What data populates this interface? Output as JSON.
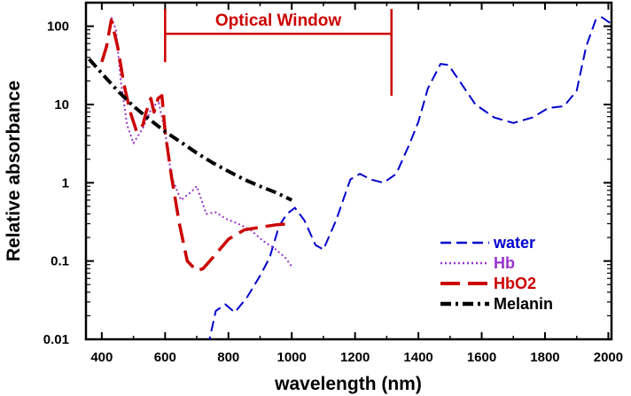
{
  "chart_data": {
    "type": "line",
    "xlabel": "wavelength (nm)",
    "ylabel": "Relative absorbance",
    "xlim": [
      350,
      2010
    ],
    "ylim": [
      0.01,
      200
    ],
    "y_scale": "log",
    "x_ticks": [
      400,
      600,
      800,
      1000,
      1200,
      1400,
      1600,
      1800,
      2000
    ],
    "y_ticks": [
      0.01,
      0.1,
      1,
      10,
      100
    ],
    "y_tick_labels": [
      "0.01",
      "0.1",
      "1",
      "10",
      "100"
    ],
    "grid": false,
    "legend_position": "bottom-right",
    "annotation": {
      "text": "Optical Window",
      "x_start": 600,
      "x_end": 1315,
      "y_level": 80,
      "color": "#cc0000"
    },
    "series": [
      {
        "name": "water",
        "color": "#0000cc",
        "dash": "dashed",
        "points": [
          [
            735,
            0.008
          ],
          [
            760,
            0.023
          ],
          [
            790,
            0.028
          ],
          [
            820,
            0.022
          ],
          [
            860,
            0.035
          ],
          [
            900,
            0.065
          ],
          [
            930,
            0.11
          ],
          [
            960,
            0.28
          ],
          [
            985,
            0.4
          ],
          [
            1010,
            0.48
          ],
          [
            1040,
            0.33
          ],
          [
            1075,
            0.16
          ],
          [
            1100,
            0.14
          ],
          [
            1140,
            0.33
          ],
          [
            1185,
            1.1
          ],
          [
            1215,
            1.3
          ],
          [
            1250,
            1.1
          ],
          [
            1290,
            1.0
          ],
          [
            1330,
            1.3
          ],
          [
            1370,
            3.0
          ],
          [
            1400,
            6.0
          ],
          [
            1430,
            16
          ],
          [
            1470,
            33
          ],
          [
            1495,
            32
          ],
          [
            1530,
            20
          ],
          [
            1580,
            10
          ],
          [
            1640,
            6.8
          ],
          [
            1700,
            5.8
          ],
          [
            1760,
            6.8
          ],
          [
            1810,
            9.0
          ],
          [
            1860,
            9.5
          ],
          [
            1900,
            15
          ],
          [
            1930,
            55
          ],
          [
            1960,
            120
          ],
          [
            1980,
            130
          ],
          [
            2005,
            110
          ]
        ]
      },
      {
        "name": "Hb",
        "color": "#9933cc",
        "dash": "dotted",
        "points": [
          [
            430,
            130
          ],
          [
            445,
            90
          ],
          [
            460,
            20
          ],
          [
            480,
            5.5
          ],
          [
            500,
            3.2
          ],
          [
            530,
            5.0
          ],
          [
            560,
            9.5
          ],
          [
            580,
            10.5
          ],
          [
            600,
            4.5
          ],
          [
            620,
            1.2
          ],
          [
            650,
            0.6
          ],
          [
            680,
            0.75
          ],
          [
            700,
            0.9
          ],
          [
            730,
            0.4
          ],
          [
            760,
            0.42
          ],
          [
            790,
            0.35
          ],
          [
            830,
            0.3
          ],
          [
            870,
            0.25
          ],
          [
            910,
            0.18
          ],
          [
            950,
            0.14
          ],
          [
            980,
            0.11
          ],
          [
            1000,
            0.085
          ]
        ]
      },
      {
        "name": "HbO2",
        "color": "#cc0000",
        "dash": "long-dash",
        "points": [
          [
            400,
            35
          ],
          [
            415,
            55
          ],
          [
            430,
            120
          ],
          [
            450,
            55
          ],
          [
            470,
            18
          ],
          [
            490,
            8
          ],
          [
            510,
            4.5
          ],
          [
            530,
            5.5
          ],
          [
            540,
            8
          ],
          [
            555,
            12
          ],
          [
            565,
            8
          ],
          [
            578,
            12
          ],
          [
            590,
            13
          ],
          [
            600,
            4.5
          ],
          [
            620,
            1.2
          ],
          [
            645,
            0.3
          ],
          [
            670,
            0.1
          ],
          [
            700,
            0.075
          ],
          [
            720,
            0.08
          ],
          [
            750,
            0.11
          ],
          [
            800,
            0.19
          ],
          [
            850,
            0.25
          ],
          [
            900,
            0.27
          ],
          [
            950,
            0.29
          ],
          [
            1000,
            0.3
          ]
        ]
      },
      {
        "name": "Melanin",
        "color": "#000000",
        "dash": "dash-dot",
        "points": [
          [
            360,
            38
          ],
          [
            400,
            25
          ],
          [
            450,
            15
          ],
          [
            500,
            9.5
          ],
          [
            550,
            6.5
          ],
          [
            600,
            4.5
          ],
          [
            650,
            3.3
          ],
          [
            700,
            2.4
          ],
          [
            750,
            1.8
          ],
          [
            800,
            1.4
          ],
          [
            850,
            1.1
          ],
          [
            900,
            0.9
          ],
          [
            950,
            0.75
          ],
          [
            1000,
            0.6
          ]
        ]
      }
    ]
  }
}
